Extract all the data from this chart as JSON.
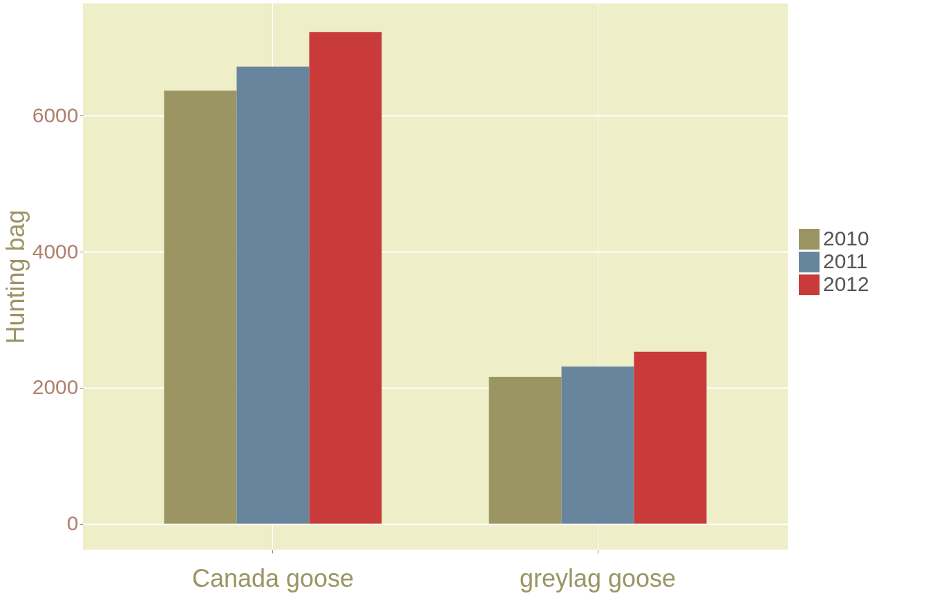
{
  "chart_data": {
    "type": "bar",
    "ylabel": "Hunting bag",
    "categories": [
      "Canada goose",
      "greylag goose"
    ],
    "series": [
      {
        "name": "2010",
        "color": "#9a9563",
        "values": [
          6370,
          2160
        ]
      },
      {
        "name": "2011",
        "color": "#67869e",
        "values": [
          6720,
          2310
        ]
      },
      {
        "name": "2012",
        "color": "#c93b3b",
        "values": [
          7230,
          2530
        ]
      }
    ],
    "ylim": [
      -380,
      7650
    ],
    "yticks": [
      0,
      2000,
      4000,
      6000
    ],
    "grid": true,
    "legend": "right"
  }
}
